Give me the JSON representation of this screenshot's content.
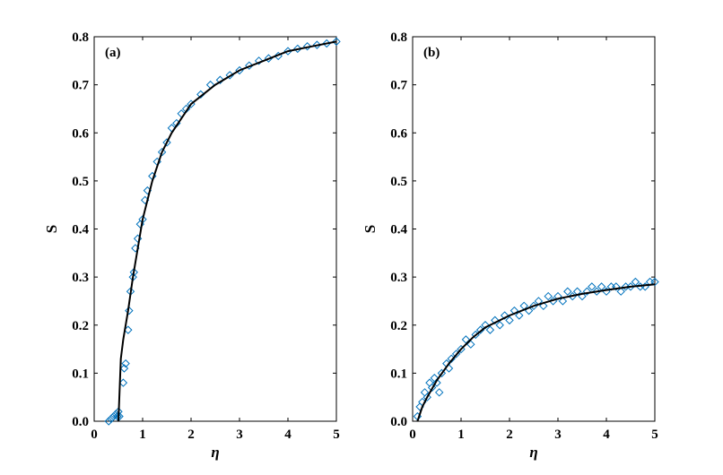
{
  "colors": {
    "marker": "#0072BD",
    "fit_line": "#000000",
    "background": "#ffffff"
  },
  "chart_data": [
    {
      "type": "scatter",
      "panel_label": "(a)",
      "xlabel": "η",
      "ylabel": "S",
      "xlim": [
        0,
        5
      ],
      "ylim": [
        0,
        0.8
      ],
      "xticks": [
        "0",
        "1",
        "2",
        "3",
        "4",
        "5"
      ],
      "yticks": [
        "0.0",
        "0.1",
        "0.2",
        "0.3",
        "0.4",
        "0.5",
        "0.6",
        "0.7",
        "0.8"
      ],
      "marker": "diamond",
      "series": [
        {
          "kind": "markers",
          "points": [
            [
              0.3,
              0.0
            ],
            [
              0.35,
              0.005
            ],
            [
              0.4,
              0.01
            ],
            [
              0.45,
              0.015
            ],
            [
              0.48,
              0.01
            ],
            [
              0.5,
              0.02
            ],
            [
              0.52,
              0.01
            ],
            [
              0.6,
              0.08
            ],
            [
              0.62,
              0.11
            ],
            [
              0.65,
              0.12
            ],
            [
              0.7,
              0.19
            ],
            [
              0.72,
              0.23
            ],
            [
              0.75,
              0.27
            ],
            [
              0.8,
              0.3
            ],
            [
              0.82,
              0.31
            ],
            [
              0.85,
              0.36
            ],
            [
              0.9,
              0.38
            ],
            [
              0.95,
              0.41
            ],
            [
              1.0,
              0.42
            ],
            [
              1.05,
              0.46
            ],
            [
              1.1,
              0.48
            ],
            [
              1.2,
              0.51
            ],
            [
              1.3,
              0.54
            ],
            [
              1.4,
              0.56
            ],
            [
              1.5,
              0.58
            ],
            [
              1.6,
              0.61
            ],
            [
              1.7,
              0.62
            ],
            [
              1.8,
              0.64
            ],
            [
              1.9,
              0.65
            ],
            [
              2.0,
              0.66
            ],
            [
              2.2,
              0.68
            ],
            [
              2.4,
              0.7
            ],
            [
              2.6,
              0.71
            ],
            [
              2.8,
              0.72
            ],
            [
              3.0,
              0.73
            ],
            [
              3.2,
              0.74
            ],
            [
              3.4,
              0.75
            ],
            [
              3.6,
              0.755
            ],
            [
              3.8,
              0.76
            ],
            [
              4.0,
              0.77
            ],
            [
              4.2,
              0.775
            ],
            [
              4.4,
              0.78
            ],
            [
              4.6,
              0.783
            ],
            [
              4.8,
              0.786
            ],
            [
              5.0,
              0.79
            ]
          ]
        },
        {
          "kind": "line",
          "points": [
            [
              0.5,
              0.0
            ],
            [
              0.55,
              0.13
            ],
            [
              0.6,
              0.17
            ],
            [
              0.7,
              0.23
            ],
            [
              0.8,
              0.3
            ],
            [
              0.9,
              0.36
            ],
            [
              1.0,
              0.42
            ],
            [
              1.2,
              0.5
            ],
            [
              1.4,
              0.56
            ],
            [
              1.6,
              0.6
            ],
            [
              1.8,
              0.63
            ],
            [
              2.0,
              0.66
            ],
            [
              2.5,
              0.7
            ],
            [
              3.0,
              0.73
            ],
            [
              3.5,
              0.75
            ],
            [
              4.0,
              0.77
            ],
            [
              4.5,
              0.78
            ],
            [
              5.0,
              0.79
            ]
          ]
        }
      ]
    },
    {
      "type": "scatter",
      "panel_label": "(b)",
      "xlabel": "η",
      "ylabel": "S",
      "xlim": [
        0,
        5
      ],
      "ylim": [
        0,
        0.8
      ],
      "xticks": [
        "0",
        "1",
        "2",
        "3",
        "4",
        "5"
      ],
      "yticks": [
        "0.0",
        "0.1",
        "0.2",
        "0.3",
        "0.4",
        "0.5",
        "0.6",
        "0.7",
        "0.8"
      ],
      "marker": "diamond",
      "series": [
        {
          "kind": "markers",
          "points": [
            [
              0.1,
              0.01
            ],
            [
              0.15,
              0.03
            ],
            [
              0.2,
              0.04
            ],
            [
              0.25,
              0.06
            ],
            [
              0.3,
              0.05
            ],
            [
              0.35,
              0.08
            ],
            [
              0.4,
              0.07
            ],
            [
              0.45,
              0.09
            ],
            [
              0.5,
              0.08
            ],
            [
              0.55,
              0.06
            ],
            [
              0.6,
              0.1
            ],
            [
              0.7,
              0.12
            ],
            [
              0.75,
              0.11
            ],
            [
              0.8,
              0.13
            ],
            [
              0.9,
              0.14
            ],
            [
              1.0,
              0.15
            ],
            [
              1.1,
              0.17
            ],
            [
              1.2,
              0.16
            ],
            [
              1.3,
              0.18
            ],
            [
              1.4,
              0.19
            ],
            [
              1.5,
              0.2
            ],
            [
              1.6,
              0.19
            ],
            [
              1.7,
              0.21
            ],
            [
              1.8,
              0.2
            ],
            [
              1.9,
              0.22
            ],
            [
              2.0,
              0.21
            ],
            [
              2.1,
              0.23
            ],
            [
              2.2,
              0.22
            ],
            [
              2.3,
              0.24
            ],
            [
              2.4,
              0.23
            ],
            [
              2.5,
              0.24
            ],
            [
              2.6,
              0.25
            ],
            [
              2.7,
              0.24
            ],
            [
              2.8,
              0.26
            ],
            [
              2.9,
              0.25
            ],
            [
              3.0,
              0.26
            ],
            [
              3.1,
              0.25
            ],
            [
              3.2,
              0.27
            ],
            [
              3.3,
              0.26
            ],
            [
              3.4,
              0.27
            ],
            [
              3.5,
              0.26
            ],
            [
              3.6,
              0.27
            ],
            [
              3.7,
              0.28
            ],
            [
              3.8,
              0.27
            ],
            [
              3.9,
              0.28
            ],
            [
              4.0,
              0.27
            ],
            [
              4.1,
              0.28
            ],
            [
              4.2,
              0.28
            ],
            [
              4.3,
              0.27
            ],
            [
              4.4,
              0.28
            ],
            [
              4.5,
              0.28
            ],
            [
              4.6,
              0.29
            ],
            [
              4.7,
              0.28
            ],
            [
              4.8,
              0.28
            ],
            [
              4.9,
              0.29
            ],
            [
              5.0,
              0.29
            ]
          ]
        },
        {
          "kind": "line",
          "points": [
            [
              0.1,
              0.0
            ],
            [
              0.2,
              0.03
            ],
            [
              0.3,
              0.05
            ],
            [
              0.5,
              0.085
            ],
            [
              0.75,
              0.12
            ],
            [
              1.0,
              0.15
            ],
            [
              1.25,
              0.175
            ],
            [
              1.5,
              0.195
            ],
            [
              2.0,
              0.22
            ],
            [
              2.5,
              0.24
            ],
            [
              3.0,
              0.255
            ],
            [
              3.5,
              0.265
            ],
            [
              4.0,
              0.273
            ],
            [
              4.5,
              0.28
            ],
            [
              5.0,
              0.285
            ]
          ]
        }
      ]
    }
  ]
}
